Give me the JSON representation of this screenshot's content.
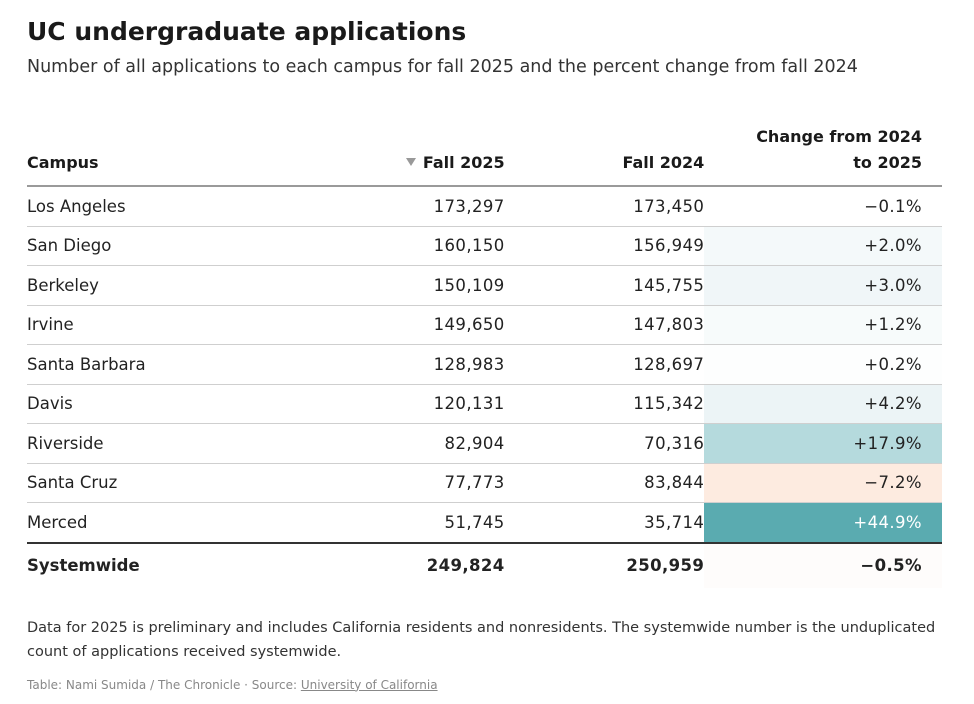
{
  "header": {
    "title": "UC undergraduate applications",
    "subtitle": "Number of all applications to each campus for fall 2025 and the percent change from fall 2024"
  },
  "columns": {
    "campus": "Campus",
    "fall2025": "Fall 2025",
    "fall2024": "Fall 2024",
    "change_line1": "Change from 2024",
    "change_line2": "to 2025"
  },
  "rows": [
    {
      "campus": "Los Angeles",
      "fall2025": "173,297",
      "fall2024": "173,450",
      "change": "−0.1%",
      "bg": "#ffffff",
      "fg": "#222222"
    },
    {
      "campus": "San Diego",
      "fall2025": "160,150",
      "fall2024": "156,949",
      "change": "+2.0%",
      "bg": "#f4f9fa",
      "fg": "#222222"
    },
    {
      "campus": "Berkeley",
      "fall2025": "150,109",
      "fall2024": "145,755",
      "change": "+3.0%",
      "bg": "#f0f6f8",
      "fg": "#222222"
    },
    {
      "campus": "Irvine",
      "fall2025": "149,650",
      "fall2024": "147,803",
      "change": "+1.2%",
      "bg": "#f7fbfb",
      "fg": "#222222"
    },
    {
      "campus": "Santa Barbara",
      "fall2025": "128,983",
      "fall2024": "128,697",
      "change": "+0.2%",
      "bg": "#fdfefe",
      "fg": "#222222"
    },
    {
      "campus": "Davis",
      "fall2025": "120,131",
      "fall2024": "115,342",
      "change": "+4.2%",
      "bg": "#ecf4f6",
      "fg": "#222222"
    },
    {
      "campus": "Riverside",
      "fall2025": "82,904",
      "fall2024": "70,316",
      "change": "+17.9%",
      "bg": "#b5dadd",
      "fg": "#222222"
    },
    {
      "campus": "Santa Cruz",
      "fall2025": "77,773",
      "fall2024": "83,844",
      "change": "−7.2%",
      "bg": "#fdebe0",
      "fg": "#222222"
    },
    {
      "campus": "Merced",
      "fall2025": "51,745",
      "fall2024": "35,714",
      "change": "+44.9%",
      "bg": "#5aabb0",
      "fg": "#ffffff"
    }
  ],
  "total": {
    "campus": "Systemwide",
    "fall2025": "249,824",
    "fall2024": "250,959",
    "change": "−0.5%",
    "bg": "#fefcfb"
  },
  "notes": "Data for 2025 is preliminary and includes California residents and nonresidents. The systemwide number is the unduplicated count of applications received systemwide.",
  "credit": {
    "prefix": "Table: Nami Sumida / The Chronicle · Source: ",
    "source_link": "University of California"
  },
  "chart_data": {
    "type": "table",
    "title": "UC undergraduate applications",
    "subtitle": "Number of all applications to each campus for fall 2025 and the percent change from fall 2024",
    "columns": [
      "Campus",
      "Fall 2025",
      "Fall 2024",
      "Change from 2024 to 2025"
    ],
    "sorted_by": "Fall 2025",
    "categories": [
      "Los Angeles",
      "San Diego",
      "Berkeley",
      "Irvine",
      "Santa Barbara",
      "Davis",
      "Riverside",
      "Santa Cruz",
      "Merced",
      "Systemwide"
    ],
    "series": [
      {
        "name": "Fall 2025",
        "values": [
          173297,
          160150,
          150109,
          149650,
          128983,
          120131,
          82904,
          77773,
          51745,
          249824
        ]
      },
      {
        "name": "Fall 2024",
        "values": [
          173450,
          156949,
          145755,
          147803,
          128697,
          115342,
          70316,
          83844,
          35714,
          250959
        ]
      },
      {
        "name": "Change from 2024 to 2025",
        "values": [
          -0.1,
          2.0,
          3.0,
          1.2,
          0.2,
          4.2,
          17.9,
          -7.2,
          44.9,
          -0.5
        ]
      }
    ]
  }
}
